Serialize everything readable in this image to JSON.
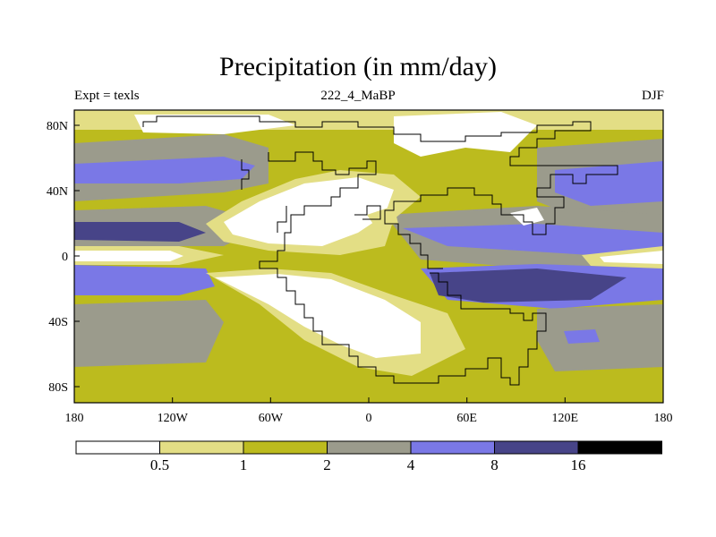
{
  "header": {
    "title": "Precipitation (in mm/day)",
    "left_label": "Expt = texls",
    "center_label": "222_4_MaBP",
    "right_label": "DJF"
  },
  "axes": {
    "x_ticks": [
      "180",
      "120W",
      "60W",
      "0",
      "60E",
      "120E",
      "180"
    ],
    "y_ticks": [
      "80N",
      "40N",
      "0",
      "40S",
      "80S"
    ]
  },
  "colorbar": {
    "colors": [
      "#ffffff",
      "#e3de85",
      "#bcbb1e",
      "#9b9b8c",
      "#7a78e6",
      "#474488",
      "#000000"
    ],
    "labels": [
      "0.5",
      "1",
      "2",
      "4",
      "8",
      "16"
    ]
  }
}
